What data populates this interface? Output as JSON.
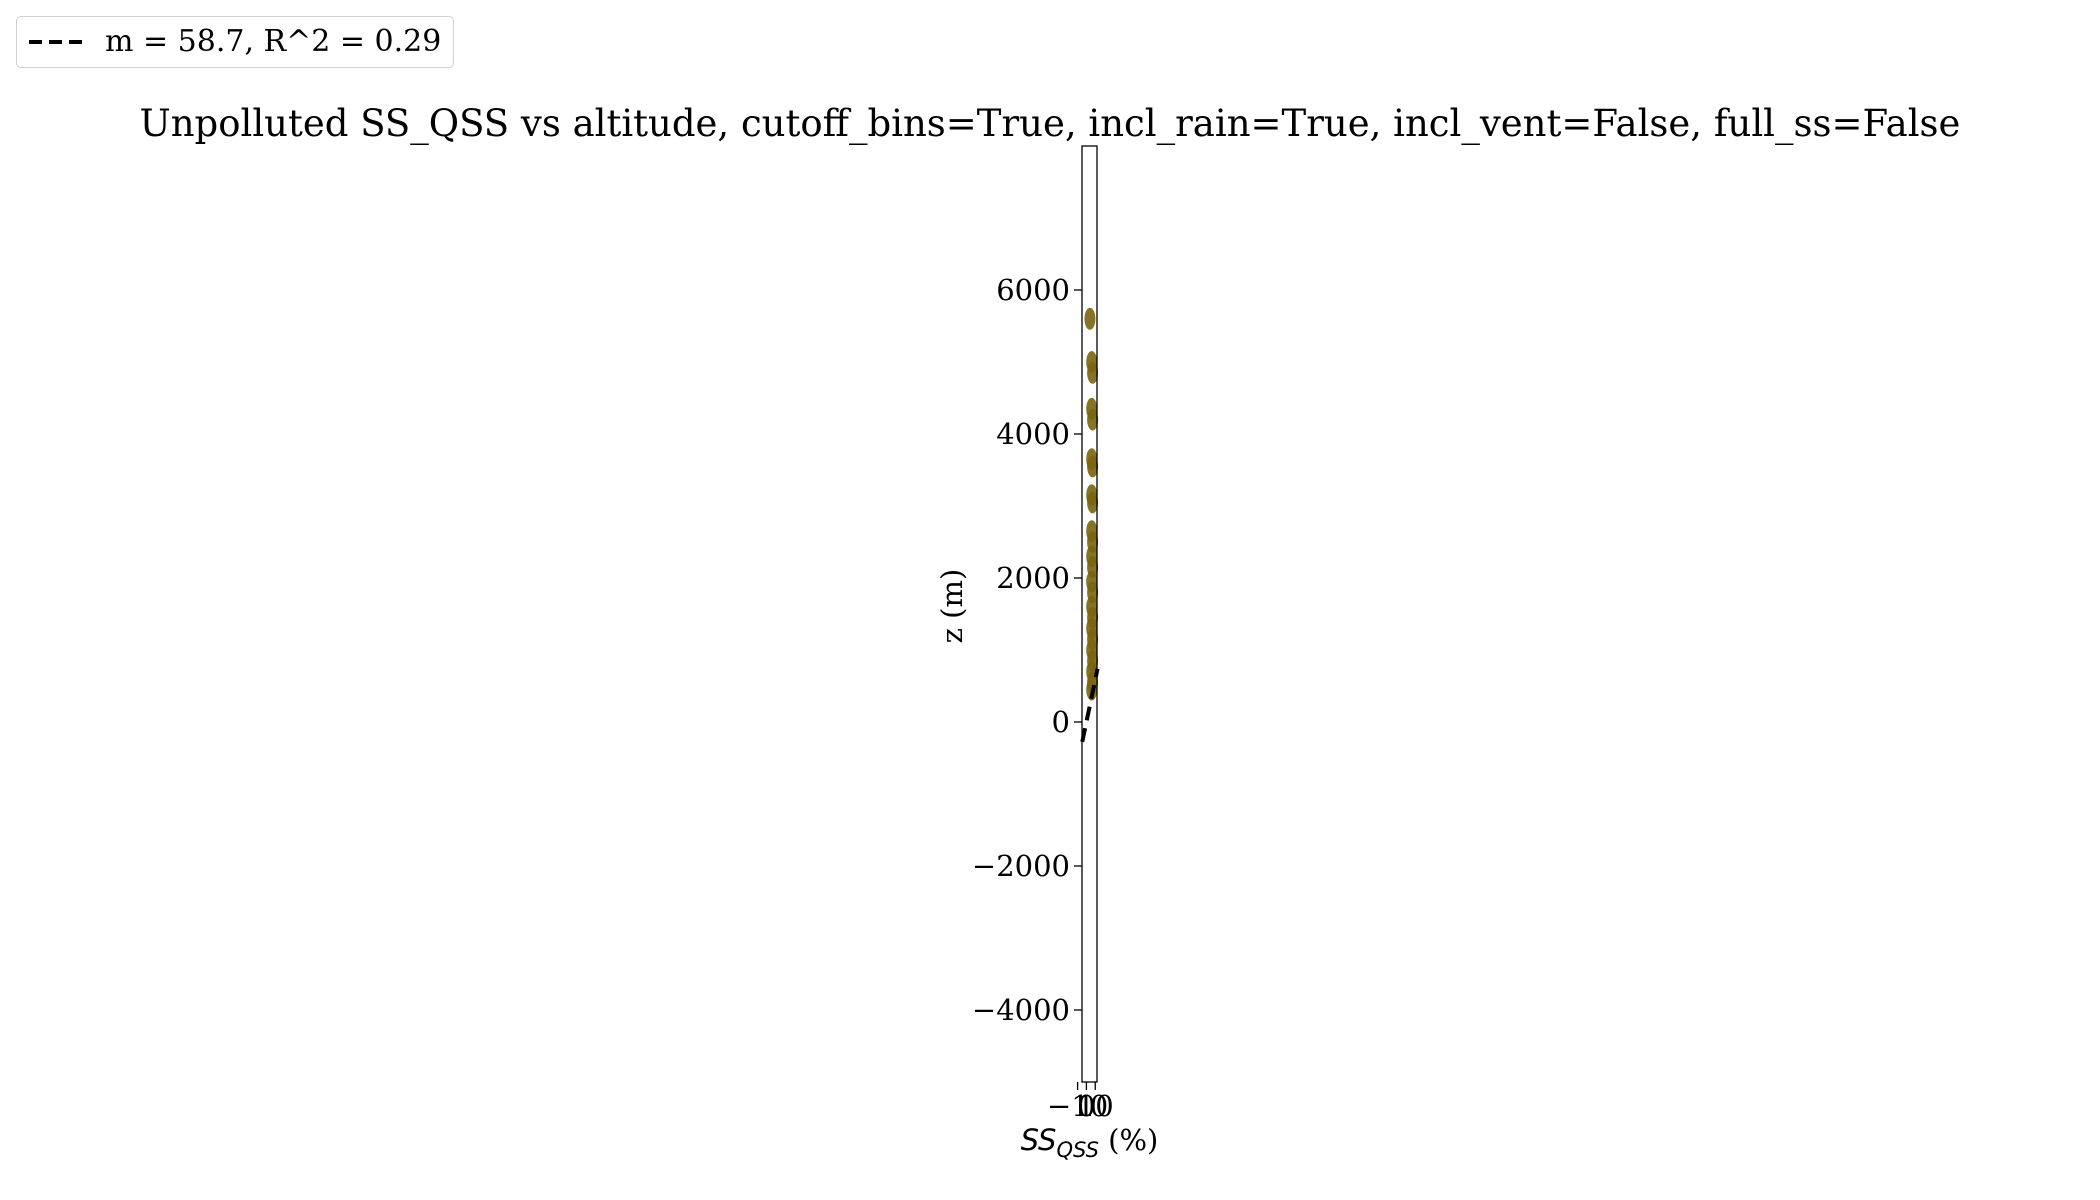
{
  "chart_data": {
    "type": "scatter",
    "title": "Unpolluted SS_QSS vs altitude, cutoff_bins=True, incl_rain=True, incl_vent=False, full_ss=False",
    "xlabel_main": "SS",
    "xlabel_sub": "QSS",
    "xlabel_unit": " (%)",
    "ylabel": "z (m)",
    "xlim": [
      -5,
      12
    ],
    "ylim": [
      -5000,
      8000
    ],
    "xticks": [
      {
        "value": -10,
        "label": "−10"
      },
      {
        "value": 0,
        "label": "0"
      },
      {
        "value": 10,
        "label": "10"
      }
    ],
    "yticks": [
      {
        "value": -4000,
        "label": "−4000"
      },
      {
        "value": -2000,
        "label": "−2000"
      },
      {
        "value": 0,
        "label": "0"
      },
      {
        "value": 2000,
        "label": "2000"
      },
      {
        "value": 4000,
        "label": "4000"
      },
      {
        "value": 6000,
        "label": "6000"
      }
    ],
    "scatter_color": "#7a6410",
    "points": [
      {
        "x": 4,
        "y": 5600
      },
      {
        "x": 6,
        "y": 5000
      },
      {
        "x": 7,
        "y": 4850
      },
      {
        "x": 6,
        "y": 4350
      },
      {
        "x": 7,
        "y": 4200
      },
      {
        "x": 6,
        "y": 3650
      },
      {
        "x": 7,
        "y": 3550
      },
      {
        "x": 6,
        "y": 3150
      },
      {
        "x": 7,
        "y": 3050
      },
      {
        "x": 6,
        "y": 2650
      },
      {
        "x": 7,
        "y": 2500
      },
      {
        "x": 6,
        "y": 2300
      },
      {
        "x": 7,
        "y": 2150
      },
      {
        "x": 6,
        "y": 1950
      },
      {
        "x": 7,
        "y": 1800
      },
      {
        "x": 6,
        "y": 1600
      },
      {
        "x": 7,
        "y": 1450
      },
      {
        "x": 6,
        "y": 1300
      },
      {
        "x": 7,
        "y": 1150
      },
      {
        "x": 6,
        "y": 1000
      },
      {
        "x": 7,
        "y": 850
      },
      {
        "x": 6,
        "y": 700
      },
      {
        "x": 7,
        "y": 550
      },
      {
        "x": 6,
        "y": 450
      }
    ],
    "fit": {
      "slope": 58.7,
      "intercept": 0,
      "x_range": [
        -4.7,
        12.6
      ],
      "color": "#000000",
      "style": "dashed",
      "label": "m = 58.7, R^2 = 0.29"
    },
    "legend_position": "top-left",
    "grid": false
  }
}
